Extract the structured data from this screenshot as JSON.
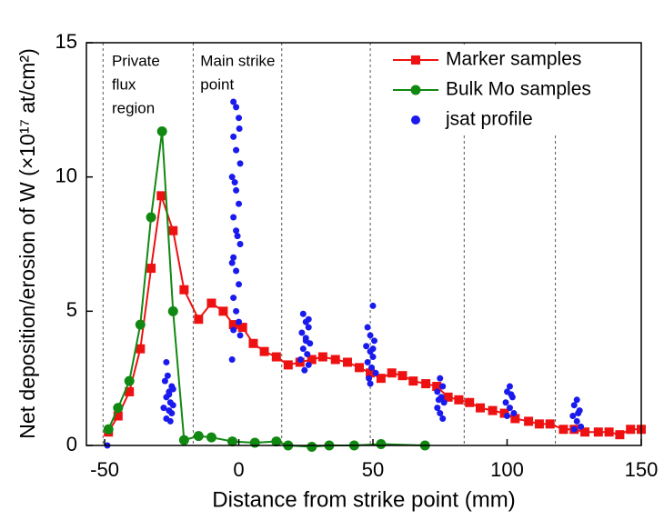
{
  "chart_data": {
    "type": "line",
    "xlabel": "Distance from strike point (mm)",
    "ylabel": "Net deposition/erosion of W (×10¹⁷ at/cm²)",
    "xlim": [
      -56.8,
      150
    ],
    "ylim": [
      0,
      15
    ],
    "xticks": [
      -50,
      0,
      50,
      100,
      150
    ],
    "yticks": [
      0,
      5,
      10,
      15
    ],
    "region_boundaries": [
      -50.6,
      -17,
      16,
      49,
      84,
      118
    ],
    "annotations": [
      {
        "x": -48,
        "lines": [
          "Private",
          "flux",
          "region"
        ]
      },
      {
        "x": -15,
        "lines": [
          "Main strike",
          "point"
        ]
      }
    ],
    "legend": "upper right",
    "series": [
      {
        "name": "Marker samples",
        "color": "#ee1111",
        "marker": "square",
        "x": [
          -48.6,
          -45,
          -40.8,
          -36.7,
          -32.7,
          -28.9,
          -24.5,
          -20.4,
          -15,
          -10.2,
          -5.8,
          -2,
          1.4,
          5.4,
          9.5,
          14,
          18.4,
          22.8,
          27.2,
          31.3,
          36,
          40.5,
          44.9,
          49,
          53,
          57,
          61,
          65,
          69.7,
          73.8,
          78,
          82,
          86,
          90,
          94.6,
          99,
          103,
          108,
          112,
          116,
          121,
          125,
          129,
          134,
          138,
          142,
          146,
          150
        ],
        "values": [
          0.5,
          1.1,
          2.0,
          3.6,
          6.6,
          9.3,
          8.0,
          5.8,
          4.7,
          5.3,
          5.0,
          4.5,
          4.4,
          3.8,
          3.5,
          3.3,
          3.0,
          3.1,
          3.2,
          3.3,
          3.2,
          3.1,
          2.9,
          2.7,
          2.5,
          2.7,
          2.6,
          2.4,
          2.3,
          2.2,
          1.8,
          1.7,
          1.6,
          1.4,
          1.3,
          1.2,
          1.0,
          0.9,
          0.8,
          0.8,
          0.6,
          0.6,
          0.5,
          0.5,
          0.5,
          0.4,
          0.6,
          0.6
        ]
      },
      {
        "name": "Bulk Mo samples",
        "color": "#118811",
        "marker": "circle",
        "x": [
          -48.6,
          -45,
          -40.8,
          -36.7,
          -32.7,
          -28.6,
          -24.5,
          -20.4,
          -15,
          -10.2,
          -2.4,
          6,
          14,
          18.4,
          27.2,
          33.7,
          43,
          53,
          69.4
        ],
        "values": [
          0.6,
          1.4,
          2.4,
          4.5,
          8.5,
          11.7,
          5.0,
          0.2,
          0.35,
          0.3,
          0.15,
          0.1,
          0.15,
          0,
          -0.05,
          0,
          0,
          0.05,
          0
        ]
      },
      {
        "name": "jsat profile",
        "color": "#1a1aee",
        "marker": "dot",
        "x": [
          -49,
          -27,
          -26,
          -25.5,
          -27,
          -26,
          -25,
          -27.5,
          -26.5,
          -25,
          -24.5,
          -27,
          -26,
          -25.5,
          -28,
          -24.5,
          -2,
          -1,
          0,
          -2,
          -1,
          0.5,
          -2.5,
          -1,
          0,
          -2,
          -1,
          0.5,
          -2,
          -1,
          0,
          -2,
          -1,
          0,
          -2,
          0.5,
          -2.5,
          -1.5,
          -0.5,
          -2.5,
          0.2,
          24,
          25,
          26,
          23.5,
          25,
          26.5,
          24,
          25.5,
          23,
          26,
          24.5,
          25,
          26,
          50,
          48,
          49,
          50.5,
          47.5,
          49,
          50,
          48,
          49.5,
          51,
          48.5,
          49,
          50,
          75,
          76,
          74,
          75.5,
          76.5,
          74,
          75,
          76,
          74.5,
          101,
          100,
          102,
          99.5,
          101,
          102.5,
          100,
          101.5,
          126,
          125,
          127,
          124.5,
          126,
          127.5,
          125,
          126.5
        ],
        "values": [
          0,
          1.0,
          1.3,
          1.6,
          1.8,
          2.0,
          2.2,
          2.4,
          2.6,
          1.2,
          1.5,
          3.1,
          1.9,
          0.9,
          1.4,
          2.1,
          12.8,
          12.6,
          12.2,
          11.5,
          11,
          10.5,
          10,
          9.5,
          9,
          8.5,
          8,
          7.5,
          7,
          6.5,
          6,
          5.5,
          5,
          4.6,
          4.3,
          4.1,
          3.2,
          9.8,
          7.8,
          6.8,
          11.8,
          4.9,
          4.6,
          4.4,
          4.2,
          4.0,
          3.8,
          3.6,
          3.4,
          3.2,
          3.0,
          2.8,
          3.9,
          4.7,
          5.2,
          4.4,
          4.1,
          3.9,
          3.7,
          3.5,
          3.3,
          3.1,
          2.9,
          2.7,
          2.5,
          2.3,
          3.6,
          2.5,
          2.2,
          2.0,
          1.8,
          1.6,
          1.4,
          1.2,
          1.0,
          1.7,
          2.2,
          2.0,
          1.8,
          1.6,
          1.4,
          1.2,
          1.1,
          1.9,
          1.7,
          1.5,
          1.3,
          1.1,
          0.9,
          0.7,
          0.6,
          1.2
        ]
      }
    ]
  }
}
